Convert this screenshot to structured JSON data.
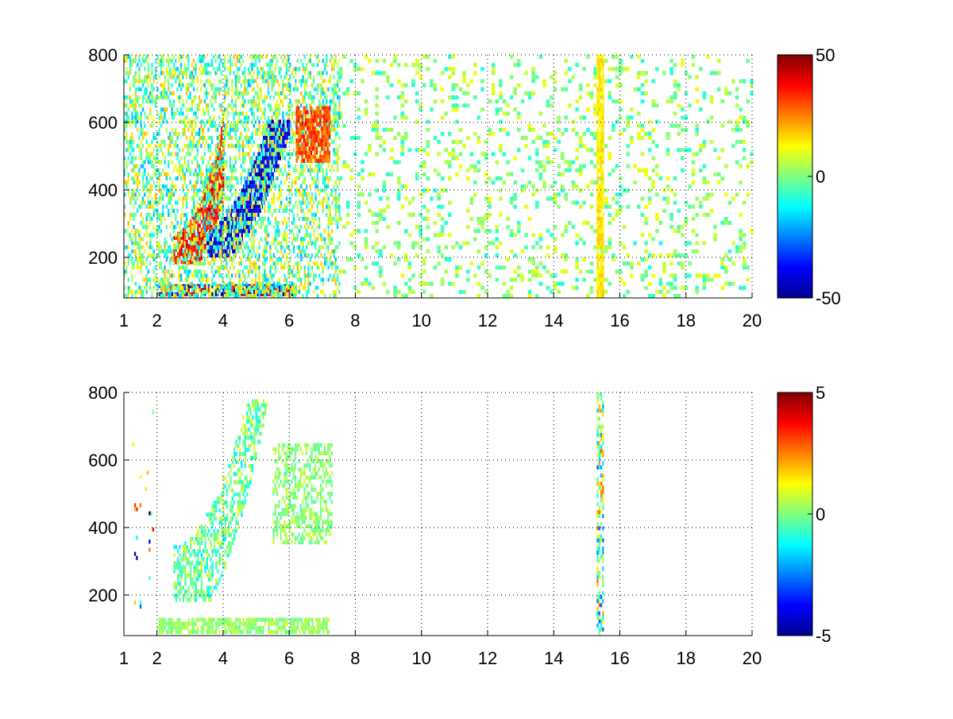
{
  "chart_data": [
    {
      "type": "heatmap",
      "title": "",
      "xlabel": "",
      "ylabel": "",
      "xlim": [
        1,
        20
      ],
      "ylim": [
        80,
        800
      ],
      "xticks": [
        1,
        2,
        4,
        6,
        8,
        10,
        12,
        14,
        16,
        18,
        20
      ],
      "yticks": [
        200,
        400,
        600,
        800
      ],
      "grid": true,
      "colormap": "jet",
      "colorbar": {
        "range": [
          -50,
          50
        ],
        "ticks": [
          -50,
          0,
          50
        ],
        "placement": "right"
      },
      "sparse_background": {
        "x_from": 7.5,
        "density": 0.18,
        "value_range": [
          -10,
          12
        ]
      },
      "regions": [
        {
          "feature": "low-frequency band",
          "x": [
            2.0,
            6.2
          ],
          "y": [
            85,
            120
          ],
          "value_range": [
            -50,
            50
          ],
          "density": 0.9
        },
        {
          "feature": "upper branch",
          "x": [
            2.5,
            4.0
          ],
          "y": [
            180,
            600
          ],
          "value": 35,
          "density": 0.85
        },
        {
          "feature": "lower branch",
          "x": [
            3.5,
            6.0
          ],
          "y": [
            200,
            600
          ],
          "value": -40,
          "density": 0.85
        },
        {
          "feature": "diffuse scatter",
          "x": [
            1.0,
            7.5
          ],
          "y": [
            80,
            800
          ],
          "value_range": [
            -20,
            20
          ],
          "density": 0.45
        },
        {
          "feature": "blob near 6.7",
          "x": [
            6.2,
            7.2
          ],
          "y": [
            480,
            640
          ],
          "value": 30,
          "density": 0.8
        },
        {
          "feature": "line at 15.4",
          "x": [
            15.3,
            15.5
          ],
          "y": [
            80,
            800
          ],
          "value": 15,
          "density": 0.95
        }
      ]
    },
    {
      "type": "heatmap",
      "title": "",
      "xlabel": "",
      "ylabel": "",
      "xlim": [
        1,
        20
      ],
      "ylim": [
        80,
        800
      ],
      "xticks": [
        1,
        2,
        4,
        6,
        8,
        10,
        12,
        14,
        16,
        18,
        20
      ],
      "yticks": [
        200,
        400,
        600,
        800
      ],
      "grid": true,
      "colormap": "jet",
      "colorbar": {
        "range": [
          -5,
          5
        ],
        "ticks": [
          -5,
          0,
          5
        ],
        "placement": "right"
      },
      "regions": [
        {
          "feature": "low-frequency band",
          "x": [
            2.0,
            7.2
          ],
          "y": [
            85,
            125
          ],
          "value_range": [
            -0.3,
            0.8
          ],
          "density": 0.75
        },
        {
          "feature": "main lobe",
          "x": [
            2.5,
            6.0
          ],
          "y": [
            180,
            780
          ],
          "value_range": [
            -1.5,
            1.0
          ],
          "density": 0.55
        },
        {
          "feature": "upper arm",
          "x": [
            5.5,
            7.3
          ],
          "y": [
            350,
            650
          ],
          "value_range": [
            -0.5,
            0.8
          ],
          "density": 0.5
        },
        {
          "feature": "line at 15.4",
          "x": [
            15.3,
            15.5
          ],
          "y": [
            80,
            800
          ],
          "value_range": [
            -3,
            3
          ],
          "density": 0.55
        },
        {
          "feature": "speckles near 1.5",
          "x": [
            1.2,
            1.9
          ],
          "y": [
            100,
            750
          ],
          "value_range": [
            -5,
            5
          ],
          "density": 0.03
        }
      ]
    }
  ]
}
